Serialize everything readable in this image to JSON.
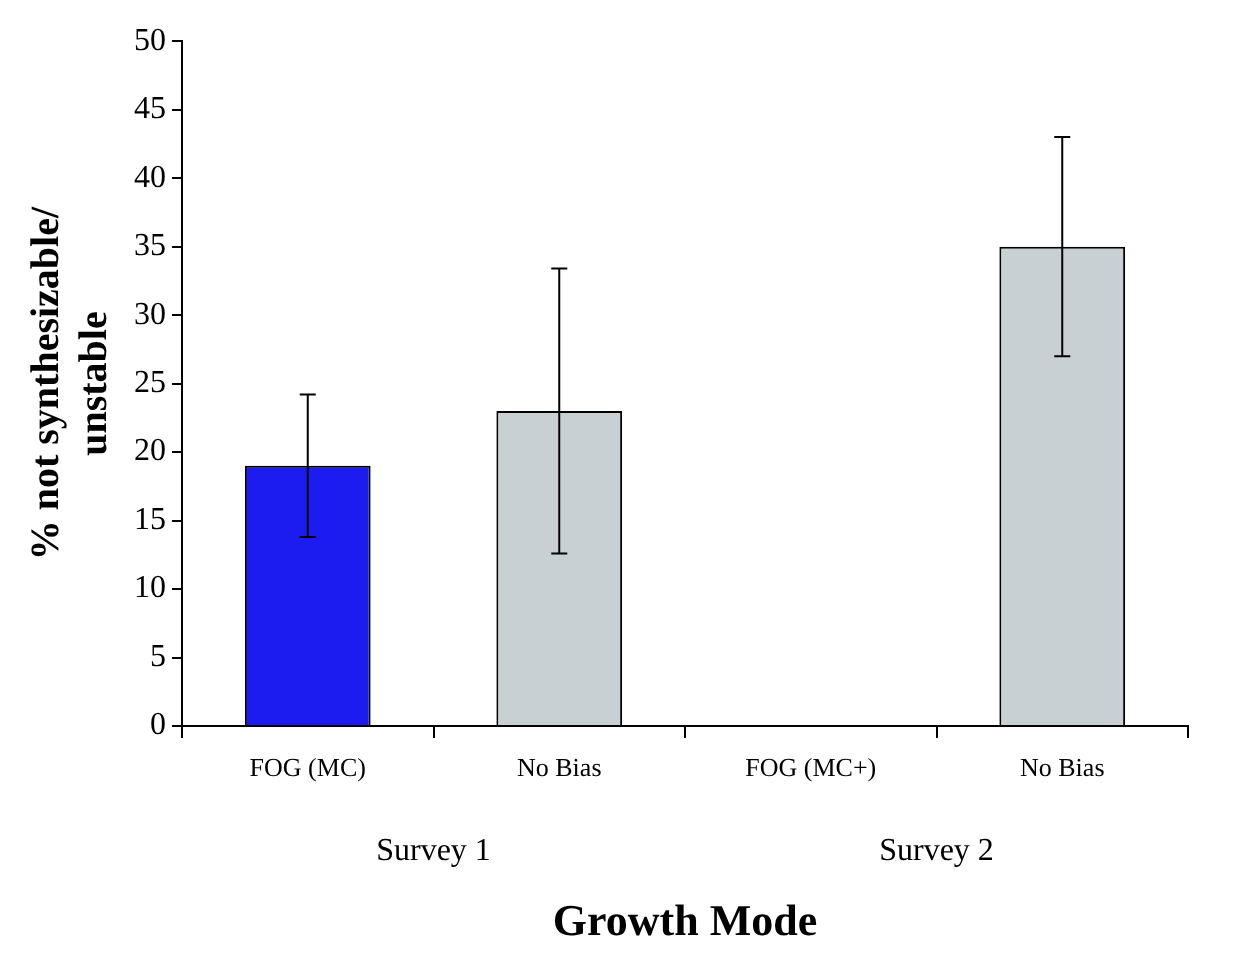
{
  "chart_data": {
    "type": "bar",
    "xlabel": "Growth Mode",
    "ylabel": "% not synthesizable/ unstable",
    "categories": [
      "FOG (MC)",
      "No Bias",
      "FOG (MC+)",
      "No Bias"
    ],
    "values": [
      19,
      23,
      null,
      35
    ],
    "errors": [
      5.2,
      10.4,
      null,
      8
    ],
    "colors": [
      "#1c1cf0",
      "#c8d0d4",
      "#c8d0d4",
      "#c8d0d4"
    ],
    "ylim": [
      0,
      50
    ],
    "yticks": [
      0,
      5,
      10,
      15,
      20,
      25,
      30,
      35,
      40,
      45,
      50
    ],
    "annotations": [
      "Survey 1",
      "Survey 2"
    ],
    "grid": false,
    "legend": false
  }
}
